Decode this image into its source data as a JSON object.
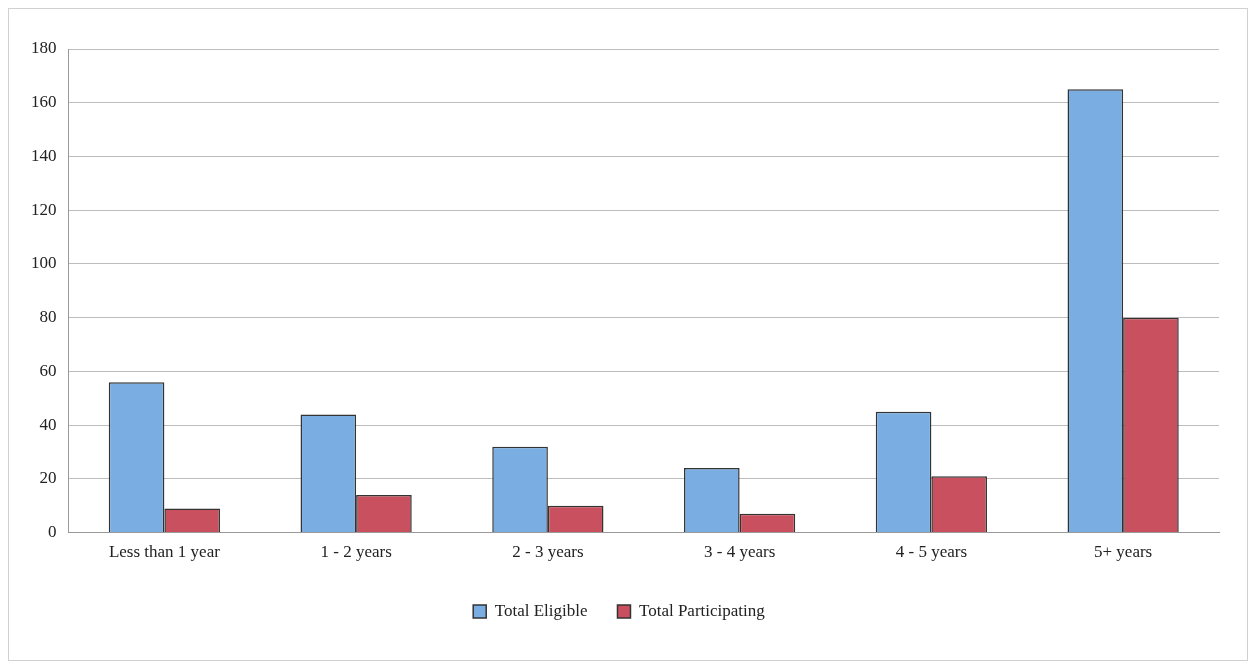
{
  "chart_data": {
    "type": "bar",
    "categories": [
      "Less than 1 year",
      "1 - 2 years",
      "2 - 3 years",
      "3 - 4 years",
      "4 - 5 years",
      "5+ years"
    ],
    "series": [
      {
        "name": "Total Eligible",
        "color": "#7aaee3",
        "values": [
          56,
          44,
          32,
          24,
          45,
          165
        ]
      },
      {
        "name": "Total Participating",
        "color": "#c9505f",
        "values": [
          9,
          14,
          10,
          7,
          21,
          80
        ]
      }
    ],
    "ylim": [
      0,
      180
    ],
    "yticks": [
      0,
      20,
      40,
      60,
      80,
      100,
      120,
      140,
      160,
      180
    ],
    "grid": "y",
    "legend": "bottom"
  }
}
